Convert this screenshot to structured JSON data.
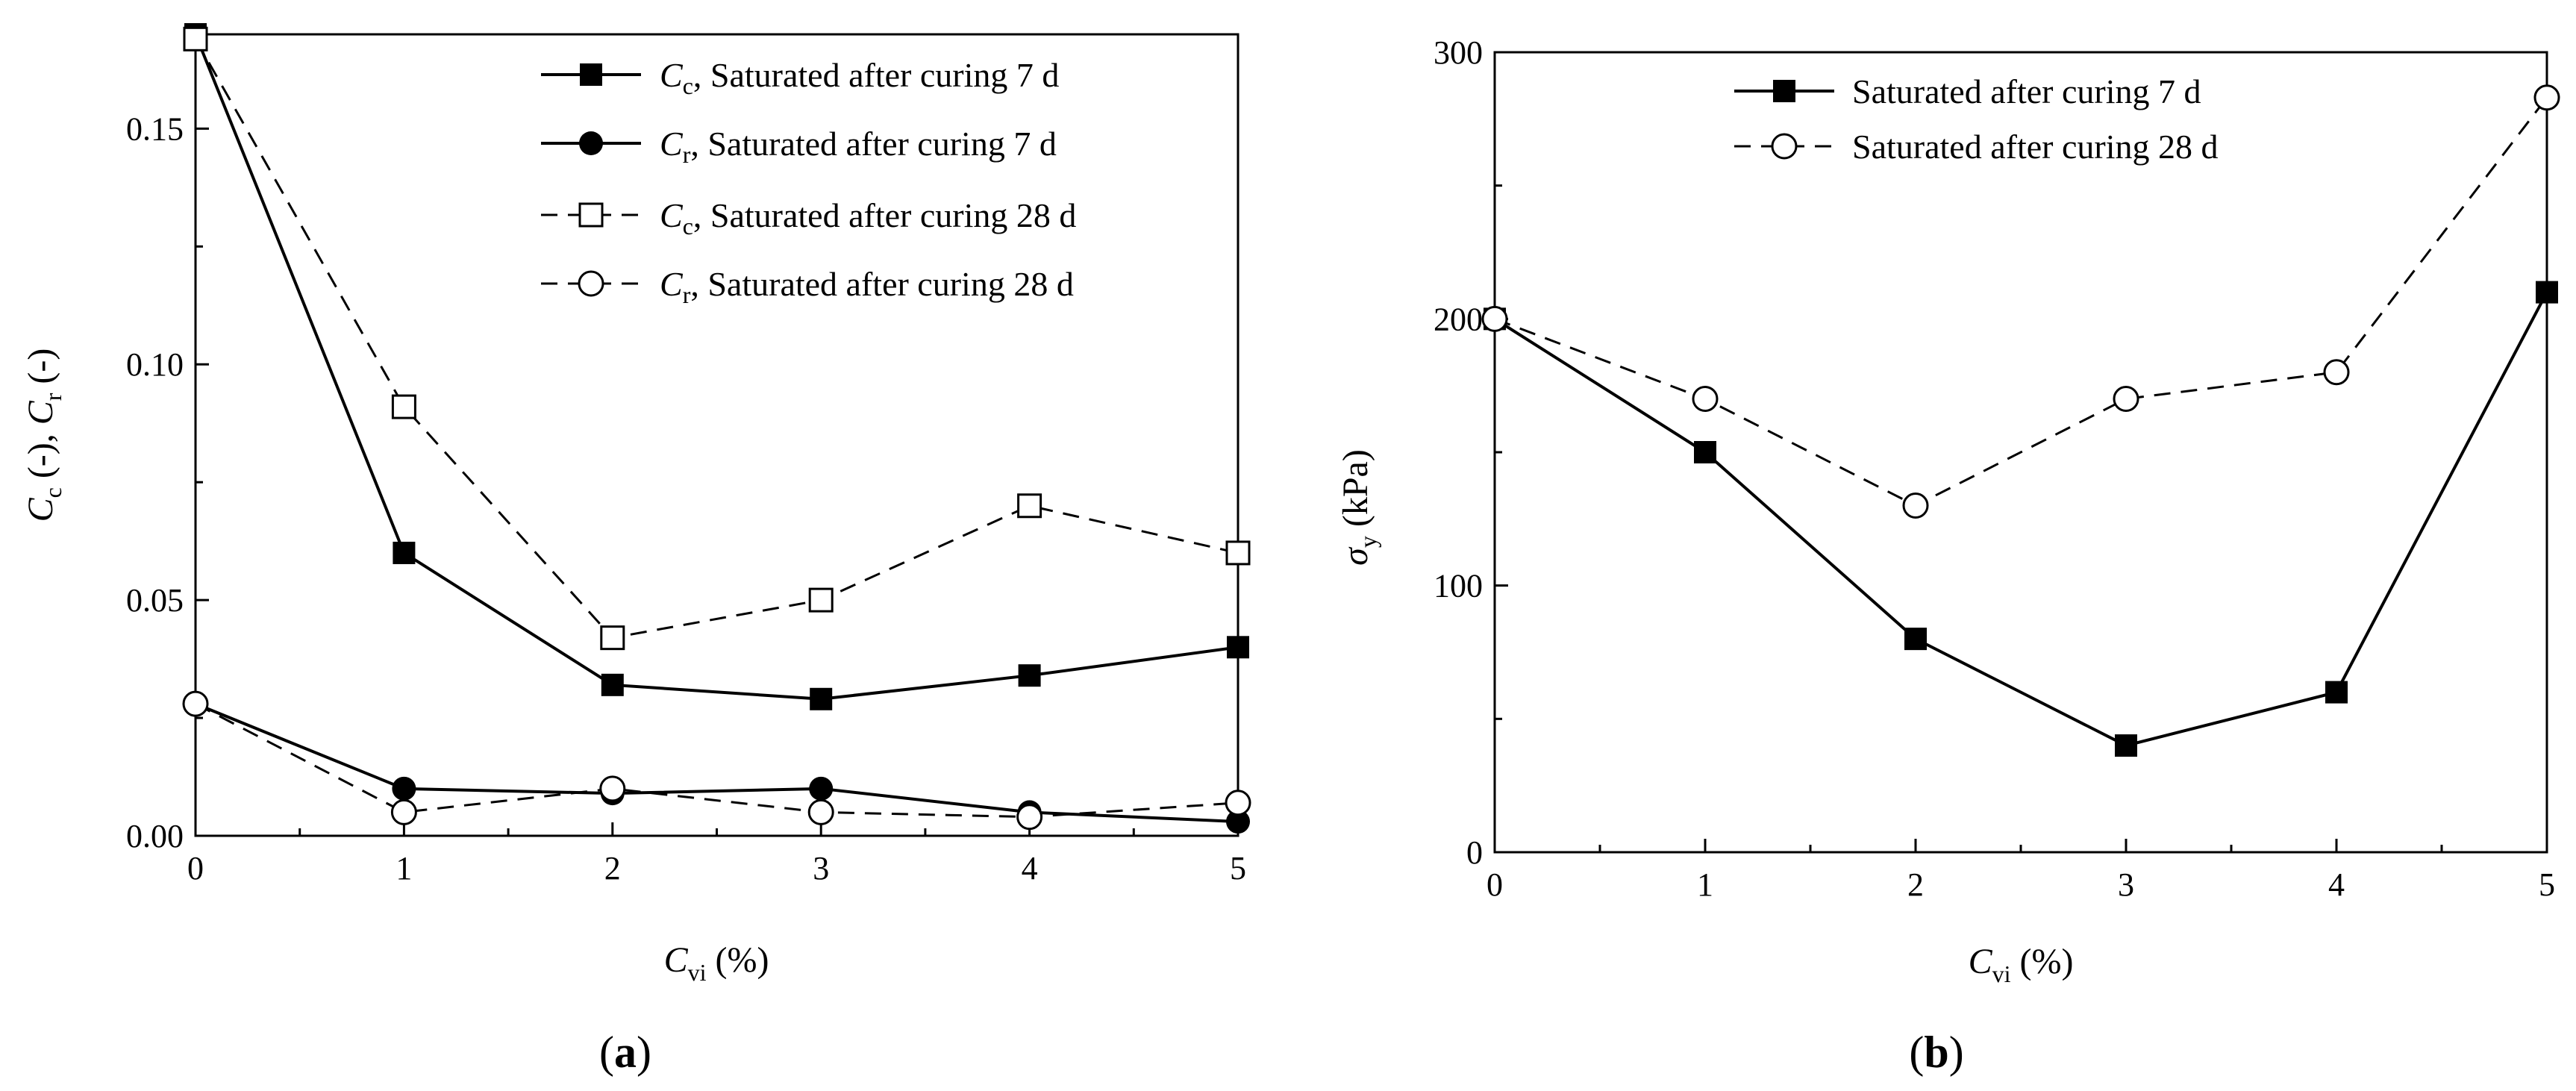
{
  "chart_data": [
    {
      "panel_label": "a",
      "type": "line",
      "x": [
        0,
        1,
        2,
        3,
        4,
        5
      ],
      "xlim": [
        0,
        5
      ],
      "ylim": [
        0,
        0.17
      ],
      "xticks": [
        0,
        1,
        2,
        3,
        4,
        5
      ],
      "xtick_labels": [
        "0",
        "1",
        "2",
        "3",
        "4",
        "5"
      ],
      "yticks": [
        0,
        0.05,
        0.1,
        0.15
      ],
      "ytick_labels": [
        "0.00",
        "0.05",
        "0.10",
        "0.15"
      ],
      "xlabel": {
        "main": "C",
        "sub": "vi",
        "rest": " (%)"
      },
      "ylabel": {
        "p1": "C",
        "s1": "c",
        "p2": " (-), ",
        "p3": "C",
        "s2": "r",
        "p4": " (-)"
      },
      "legend_position": "top-right",
      "series": [
        {
          "sym": "C",
          "sub": "c",
          "name": ", Saturated after curing 7 d",
          "marker": "square",
          "filled": true,
          "dashed": false,
          "values": [
            0.17,
            0.06,
            0.032,
            0.029,
            0.034,
            0.04
          ]
        },
        {
          "sym": "C",
          "sub": "r",
          "name": ", Saturated after curing 7 d",
          "marker": "circle",
          "filled": true,
          "dashed": false,
          "values": [
            0.028,
            0.01,
            0.009,
            0.01,
            0.005,
            0.003
          ]
        },
        {
          "sym": "C",
          "sub": "c",
          "name": ", Saturated after curing 28 d",
          "marker": "square",
          "filled": false,
          "dashed": true,
          "values": [
            0.169,
            0.091,
            0.042,
            0.05,
            0.07,
            0.06
          ]
        },
        {
          "sym": "C",
          "sub": "r",
          "name": ", Saturated after curing 28 d",
          "marker": "circle",
          "filled": false,
          "dashed": true,
          "values": [
            0.028,
            0.005,
            0.01,
            0.005,
            0.004,
            0.007
          ]
        }
      ]
    },
    {
      "panel_label": "b",
      "type": "line",
      "x": [
        0,
        1,
        2,
        3,
        4,
        5
      ],
      "xlim": [
        0,
        5
      ],
      "ylim": [
        0,
        300
      ],
      "xticks": [
        0,
        1,
        2,
        3,
        4,
        5
      ],
      "xtick_labels": [
        "0",
        "1",
        "2",
        "3",
        "4",
        "5"
      ],
      "yticks": [
        0,
        100,
        200,
        300
      ],
      "ytick_labels": [
        "0",
        "100",
        "200",
        "300"
      ],
      "xlabel": {
        "main": "C",
        "sub": "vi",
        "rest": " (%)"
      },
      "ylabel": {
        "p1": "σ",
        "s1": "y",
        "p2": " (kPa)"
      },
      "legend_position": "top-left",
      "series": [
        {
          "name": "Saturated after curing 7 d",
          "marker": "square",
          "filled": true,
          "dashed": false,
          "values": [
            200,
            150,
            80,
            40,
            60,
            210
          ]
        },
        {
          "name": "Saturated after curing 28 d",
          "marker": "circle",
          "filled": false,
          "dashed": true,
          "values": [
            200,
            170,
            130,
            170,
            180,
            283
          ]
        }
      ]
    }
  ]
}
